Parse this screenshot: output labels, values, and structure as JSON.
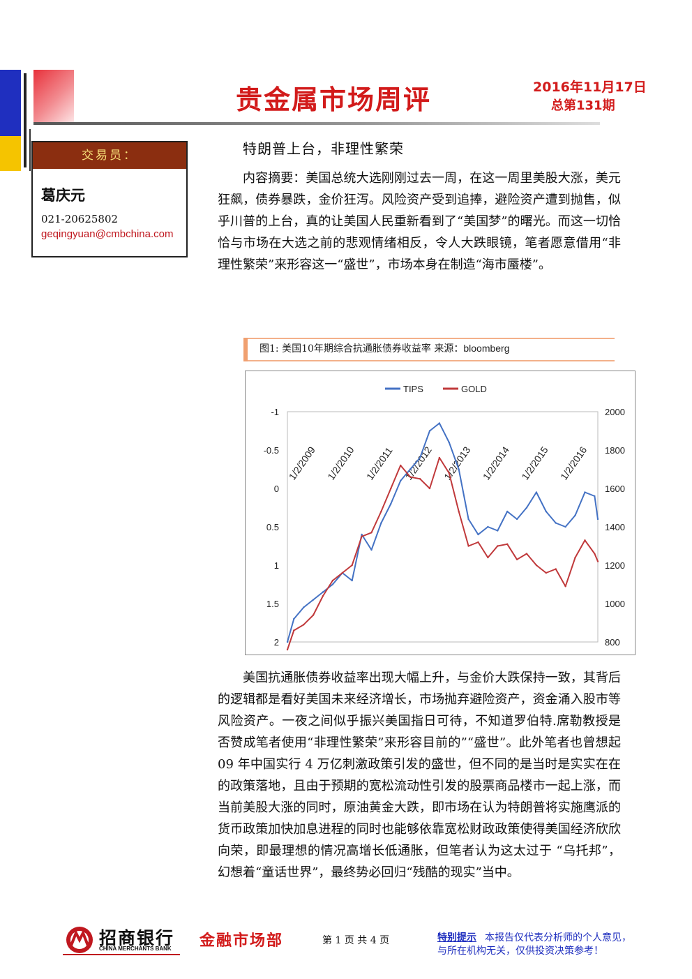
{
  "header": {
    "title": "贵金属市场周评",
    "date": "2016年11月17日",
    "issue": "总第131期"
  },
  "trader": {
    "heading": "交易员：",
    "name": "葛庆元",
    "phone": "021-20625802",
    "email": "geqingyuan@cmbchina.com"
  },
  "article": {
    "subtitle": "特朗普上台，非理性繁荣",
    "abstract": "内容摘要：美国总统大选刚刚过去一周，在这一周里美股大涨，美元狂飙，债券暴跌，金价狂泻。风险资产受到追捧，避险资产遭到抛售，似乎川普的上台，真的让美国人民重新看到了“美国梦”的曙光。而这一切恰恰与市场在大选之前的悲观情绪相反，令人大跌眼镜，笔者愿意借用“非理性繁荣”来形容这一“盛世”，市场本身在制造“海市蜃楼”。",
    "body": "美国抗通胀债券收益率出现大幅上升，与金价大跌保持一致，其背后的逻辑都是看好美国未来经济增长，市场抛弃避险资产，资金涌入股市等风险资产。一夜之间似乎振兴美国指日可待，不知道罗伯特.席勒教授是否赞成笔者使用“非理性繁荣”来形容目前的”“盛世”。此外笔者也曾想起 09 年中国实行 4 万亿刺激政策引发的盛世，但不同的是当时是实实在在的政策落地，且由于预期的宽松流动性引发的股票商品楼市一起上涨，而当前美股大涨的同时，原油黄金大跌，即市场在认为特朗普将实施鹰派的货币政策加快加息进程的同时也能够依靠宽松财政政策使得美国经济欣欣向荣，即最理想的情况高增长低通胀，但笔者认为这太过于 “乌托邦”，幻想着“童话世界”，最终势必回归“残酷的现实”当中。"
  },
  "figure": {
    "caption": "图1:  美国10年期综合抗通胀债券收益率   来源：",
    "source": "bloomberg"
  },
  "chart_data": {
    "type": "line",
    "legend": [
      "TIPS",
      "GOLD"
    ],
    "legend_position": "top-center",
    "x_ticks": [
      "1/2/2009",
      "1/2/2010",
      "1/2/2011",
      "1/2/2012",
      "1/2/2013",
      "1/2/2014",
      "1/2/2015",
      "1/2/2016"
    ],
    "y_left": {
      "ticks": [
        "-1",
        "-0.5",
        "0",
        "0.5",
        "1",
        "1.5",
        "2"
      ],
      "range": [
        -1,
        2
      ],
      "inverted": true
    },
    "y_right": {
      "ticks": [
        "2000",
        "1800",
        "1600",
        "1400",
        "1200",
        "1000",
        "800"
      ],
      "range": [
        800,
        2000
      ]
    },
    "series": [
      {
        "name": "TIPS",
        "color": "#4472c4",
        "axis": "left",
        "x": [
          "2008-11",
          "2009-01",
          "2009-04",
          "2009-07",
          "2009-10",
          "2010-01",
          "2010-04",
          "2010-07",
          "2010-10",
          "2011-01",
          "2011-04",
          "2011-07",
          "2011-10",
          "2012-01",
          "2012-04",
          "2012-07",
          "2012-10",
          "2013-01",
          "2013-04",
          "2013-07",
          "2013-10",
          "2014-01",
          "2014-04",
          "2014-07",
          "2014-10",
          "2015-01",
          "2015-04",
          "2015-07",
          "2015-10",
          "2016-01",
          "2016-04",
          "2016-07",
          "2016-10",
          "2016-11"
        ],
        "values": [
          2.0,
          1.7,
          1.55,
          1.45,
          1.35,
          1.25,
          1.1,
          1.2,
          0.6,
          0.8,
          0.45,
          0.2,
          -0.1,
          -0.25,
          -0.4,
          -0.75,
          -0.85,
          -0.6,
          -0.25,
          0.4,
          0.6,
          0.5,
          0.55,
          0.3,
          0.4,
          0.25,
          0.05,
          0.3,
          0.45,
          0.5,
          0.35,
          0.05,
          0.1,
          0.4
        ]
      },
      {
        "name": "GOLD",
        "color": "#c0393b",
        "axis": "right",
        "x": [
          "2008-11",
          "2009-01",
          "2009-04",
          "2009-07",
          "2009-10",
          "2010-01",
          "2010-04",
          "2010-07",
          "2010-10",
          "2011-01",
          "2011-04",
          "2011-07",
          "2011-10",
          "2012-01",
          "2012-04",
          "2012-07",
          "2012-10",
          "2013-01",
          "2013-04",
          "2013-07",
          "2013-10",
          "2014-01",
          "2014-04",
          "2014-07",
          "2014-10",
          "2015-01",
          "2015-04",
          "2015-07",
          "2015-10",
          "2016-01",
          "2016-04",
          "2016-07",
          "2016-10",
          "2016-11"
        ],
        "values": [
          760,
          860,
          890,
          940,
          1040,
          1120,
          1160,
          1200,
          1350,
          1370,
          1480,
          1600,
          1720,
          1660,
          1650,
          1600,
          1760,
          1680,
          1480,
          1300,
          1320,
          1240,
          1300,
          1310,
          1230,
          1260,
          1200,
          1160,
          1180,
          1090,
          1240,
          1330,
          1260,
          1220
        ]
      }
    ]
  },
  "footer": {
    "bank_cn": "招商银行",
    "bank_en": "CHINA MERCHANTS BANK",
    "dept": "金融市场部",
    "pages": "第 1 页 共 4 页",
    "notice_label": "特别提示",
    "notice_1": "本报告仅代表分析师的个人意见，",
    "notice_2": "与所在机构无关，仅供投资决策参考！"
  }
}
